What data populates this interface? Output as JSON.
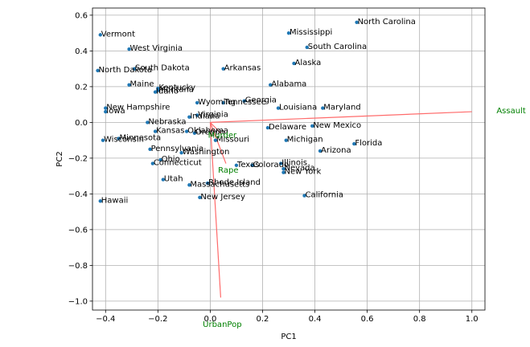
{
  "chart_data": {
    "type": "scatter",
    "title": "",
    "xlabel": "PC1",
    "ylabel": "PC2",
    "xlim": [
      -0.45,
      1.05
    ],
    "ylim": [
      -1.05,
      0.64
    ],
    "xticks": [
      -0.4,
      -0.2,
      0.0,
      0.2,
      0.4,
      0.6,
      0.8,
      1.0
    ],
    "yticks": [
      -1.0,
      -0.8,
      -0.6,
      -0.4,
      -0.2,
      0.0,
      0.2,
      0.4,
      0.6
    ],
    "xtick_labels": [
      "−0.4",
      "−0.2",
      "0.0",
      "0.2",
      "0.4",
      "0.6",
      "0.8",
      "1.0"
    ],
    "ytick_labels": [
      "−1.0",
      "−0.8",
      "−0.6",
      "−0.4",
      "−0.2",
      "0.0",
      "0.2",
      "0.4",
      "0.6"
    ],
    "grid": true,
    "point_color": "#1f77b4",
    "arrow_color": "#ff6b6b",
    "loading_label_color": "#008000",
    "points": [
      {
        "label": "Vermont",
        "x": -0.42,
        "y": 0.49
      },
      {
        "label": "West Virginia",
        "x": -0.31,
        "y": 0.41
      },
      {
        "label": "North Dakota",
        "x": -0.43,
        "y": 0.29
      },
      {
        "label": "South Dakota",
        "x": -0.29,
        "y": 0.3
      },
      {
        "label": "Maine",
        "x": -0.31,
        "y": 0.21
      },
      {
        "label": "Kentucky",
        "x": -0.2,
        "y": 0.19
      },
      {
        "label": "Montana",
        "x": -0.2,
        "y": 0.18
      },
      {
        "label": "Idaho",
        "x": -0.21,
        "y": 0.17
      },
      {
        "label": "Arkansas",
        "x": 0.05,
        "y": 0.3
      },
      {
        "label": "Mississippi",
        "x": 0.3,
        "y": 0.5
      },
      {
        "label": "North Carolina",
        "x": 0.56,
        "y": 0.56
      },
      {
        "label": "South Carolina",
        "x": 0.37,
        "y": 0.42
      },
      {
        "label": "Alaska",
        "x": 0.32,
        "y": 0.33
      },
      {
        "label": "Alabama",
        "x": 0.23,
        "y": 0.21
      },
      {
        "label": "New Hampshire",
        "x": -0.4,
        "y": 0.08
      },
      {
        "label": "Iowa",
        "x": -0.4,
        "y": 0.06
      },
      {
        "label": "Wyoming",
        "x": -0.05,
        "y": 0.11
      },
      {
        "label": "Tennessee",
        "x": 0.05,
        "y": 0.11
      },
      {
        "label": "Georgia",
        "x": 0.13,
        "y": 0.12
      },
      {
        "label": "Louisiana",
        "x": 0.26,
        "y": 0.08
      },
      {
        "label": "Maryland",
        "x": 0.43,
        "y": 0.08
      },
      {
        "label": "Virginia",
        "x": -0.05,
        "y": 0.04
      },
      {
        "label": "Indiana",
        "x": -0.08,
        "y": 0.03
      },
      {
        "label": "Nebraska",
        "x": -0.24,
        "y": 0.0
      },
      {
        "label": "New Mexico",
        "x": 0.39,
        "y": -0.02
      },
      {
        "label": "Delaware",
        "x": 0.22,
        "y": -0.03
      },
      {
        "label": "Kansas",
        "x": -0.21,
        "y": -0.05
      },
      {
        "label": "Oklahoma",
        "x": -0.09,
        "y": -0.05
      },
      {
        "label": "Oregon",
        "x": -0.06,
        "y": -0.06
      },
      {
        "label": "Wisconsin",
        "x": -0.41,
        "y": -0.1
      },
      {
        "label": "Minnesota",
        "x": -0.35,
        "y": -0.09
      },
      {
        "label": "Missouri",
        "x": 0.02,
        "y": -0.1
      },
      {
        "label": "Michigan",
        "x": 0.29,
        "y": -0.1
      },
      {
        "label": "Florida",
        "x": 0.55,
        "y": -0.12
      },
      {
        "label": "Pennsylvania",
        "x": -0.23,
        "y": -0.15
      },
      {
        "label": "Washington",
        "x": -0.11,
        "y": -0.17
      },
      {
        "label": "Arizona",
        "x": 0.42,
        "y": -0.16
      },
      {
        "label": "Ohio",
        "x": -0.19,
        "y": -0.21
      },
      {
        "label": "Connecticut",
        "x": -0.22,
        "y": -0.23
      },
      {
        "label": "Texas",
        "x": 0.1,
        "y": -0.24
      },
      {
        "label": "Illinois",
        "x": 0.27,
        "y": -0.23
      },
      {
        "label": "Colorado",
        "x": 0.16,
        "y": -0.24
      },
      {
        "label": "Nevada",
        "x": 0.28,
        "y": -0.26
      },
      {
        "label": "New York",
        "x": 0.28,
        "y": -0.28
      },
      {
        "label": "Utah",
        "x": -0.18,
        "y": -0.32
      },
      {
        "label": "Massachusetts",
        "x": -0.08,
        "y": -0.35
      },
      {
        "label": "Rhode Island",
        "x": -0.01,
        "y": -0.34
      },
      {
        "label": "New Jersey",
        "x": -0.04,
        "y": -0.42
      },
      {
        "label": "California",
        "x": 0.36,
        "y": -0.41
      },
      {
        "label": "Hawaii",
        "x": -0.42,
        "y": -0.44
      }
    ],
    "loadings": [
      {
        "label": "Assault",
        "x": 1.0,
        "y": 0.06
      },
      {
        "label": "Rape",
        "x": 0.06,
        "y": -0.23
      },
      {
        "label": "Murder",
        "x": 0.04,
        "y": -0.06
      },
      {
        "label": "UrbanPop",
        "x": 0.04,
        "y": -0.98
      }
    ]
  }
}
